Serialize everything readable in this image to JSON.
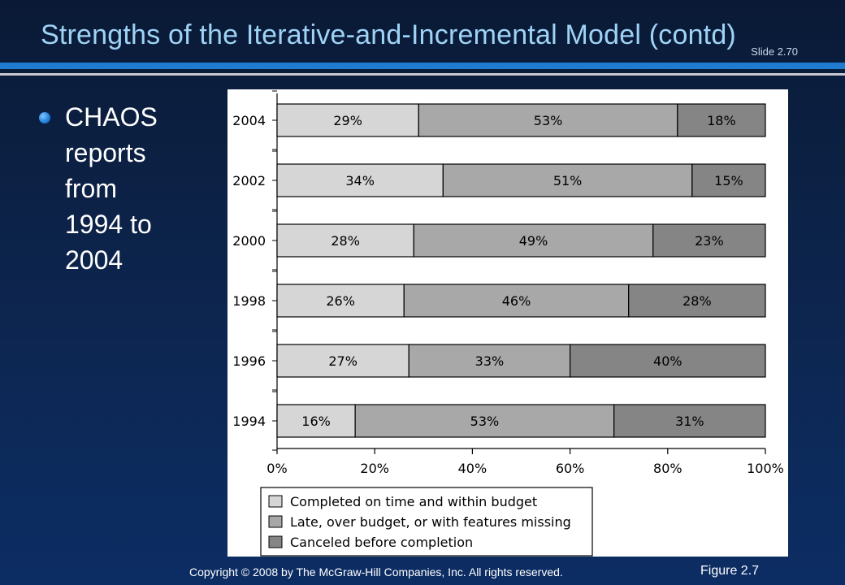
{
  "slide": {
    "title": "Strengths of the Iterative-and-Incremental Model (contd)",
    "slide_number": "Slide 2.70",
    "bullet": "CHAOS reports from 1994 to 2004",
    "footer": "Copyright © 2008 by The McGraw-Hill Companies, Inc.  All rights reserved.",
    "figure_label": "Figure 2.7"
  },
  "colors": {
    "completed": "#d6d6d6",
    "late": "#a8a8a8",
    "canceled": "#858585"
  },
  "chart_data": {
    "type": "bar",
    "orientation": "horizontal",
    "stacked": true,
    "categories": [
      "2004",
      "2002",
      "2000",
      "1998",
      "1996",
      "1994"
    ],
    "series": [
      {
        "name": "Completed on time and within budget",
        "values": [
          29,
          34,
          28,
          26,
          27,
          16
        ],
        "labels": [
          "29%",
          "34%",
          "28%",
          "26%",
          "27%",
          "16%"
        ]
      },
      {
        "name": "Late, over budget, or with features missing",
        "values": [
          53,
          51,
          49,
          46,
          33,
          53
        ],
        "labels": [
          "53%",
          "51%",
          "49%",
          "46%",
          "33%",
          "53%"
        ]
      },
      {
        "name": "Canceled before completion",
        "values": [
          18,
          15,
          23,
          28,
          40,
          31
        ],
        "labels": [
          "18%",
          "15%",
          "23%",
          "28%",
          "40%",
          "31%"
        ]
      }
    ],
    "x_ticks": [
      "0%",
      "20%",
      "40%",
      "60%",
      "80%",
      "100%"
    ],
    "xlim": [
      0,
      100
    ],
    "legend_position": "bottom-left",
    "grid": false
  }
}
